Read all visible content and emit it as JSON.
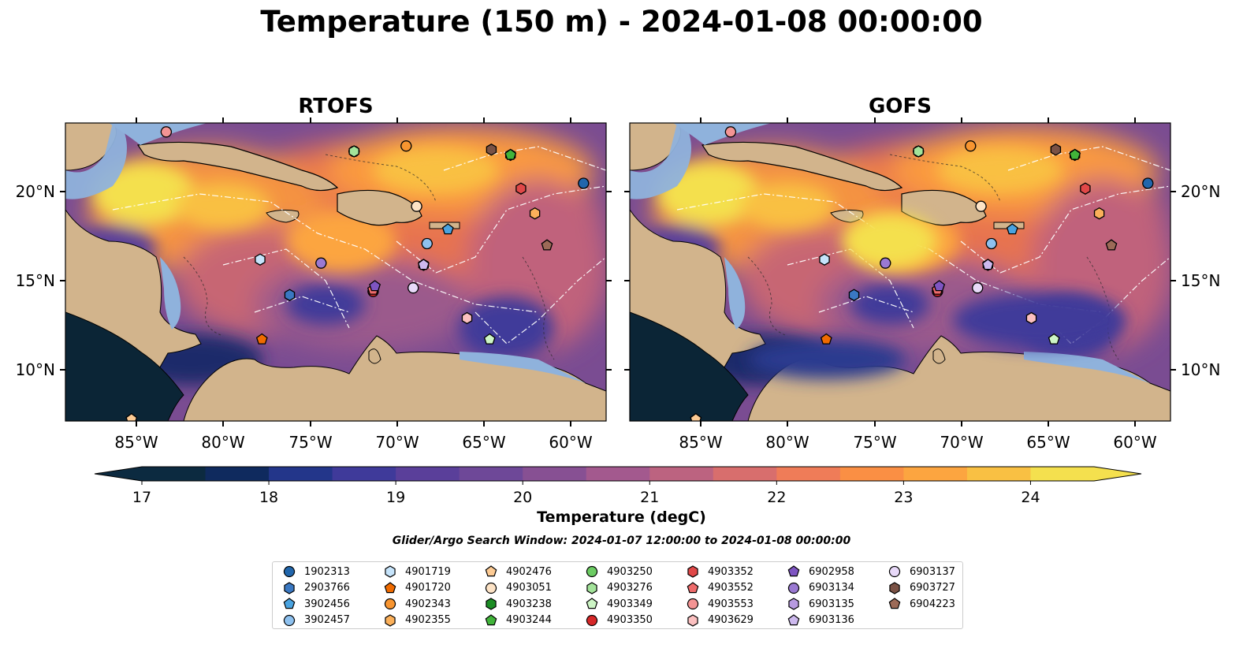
{
  "title": "Temperature (150 m) - 2024-01-08 00:00:00",
  "panels": [
    {
      "title": "RTOFS"
    },
    {
      "title": "GOFS"
    }
  ],
  "axes": {
    "lon_labels": [
      "85°W",
      "80°W",
      "75°W",
      "70°W",
      "65°W",
      "60°W"
    ],
    "lat_labels": [
      "20°N",
      "15°N",
      "10°N"
    ]
  },
  "colorbar": {
    "label": "Temperature (degC)",
    "ticks": [
      "17",
      "18",
      "19",
      "20",
      "21",
      "22",
      "23",
      "24"
    ],
    "min": 17,
    "max": 24.5,
    "step": 0.5,
    "colors": [
      "#0c2a40",
      "#0f2a5e",
      "#23368a",
      "#3f3a9a",
      "#5a3f9a",
      "#6e4898",
      "#875093",
      "#a3598e",
      "#bc6380",
      "#d86e6d",
      "#ef7c58",
      "#fa8f44",
      "#fca540",
      "#f9c043",
      "#f4e04e"
    ]
  },
  "search_window": "Glider/Argo Search Window: 2024-01-07 12:00:00 to 2024-01-08 00:00:00",
  "legend": [
    {
      "id": "1902313",
      "marker": "circle",
      "color": "#2166ac"
    },
    {
      "id": "2903766",
      "marker": "hexagon",
      "color": "#3a78c2"
    },
    {
      "id": "3902456",
      "marker": "pentagon",
      "color": "#4aa3e0"
    },
    {
      "id": "3902457",
      "marker": "circle",
      "color": "#8ec1ef"
    },
    {
      "id": "4901719",
      "marker": "hexagon",
      "color": "#c6e4fb"
    },
    {
      "id": "4901720",
      "marker": "pentagon",
      "color": "#f06b00"
    },
    {
      "id": "4902343",
      "marker": "circle",
      "color": "#f89530"
    },
    {
      "id": "4902355",
      "marker": "hexagon",
      "color": "#fbb05a"
    },
    {
      "id": "4902476",
      "marker": "pentagon",
      "color": "#fdcb94"
    },
    {
      "id": "4903051",
      "marker": "circle",
      "color": "#fde3c6"
    },
    {
      "id": "4903238",
      "marker": "hexagon",
      "color": "#1c8d24"
    },
    {
      "id": "4903244",
      "marker": "pentagon",
      "color": "#41b43a"
    },
    {
      "id": "4903250",
      "marker": "circle",
      "color": "#6ccc63"
    },
    {
      "id": "4903276",
      "marker": "hexagon",
      "color": "#a3e39a"
    },
    {
      "id": "4903349",
      "marker": "pentagon",
      "color": "#cdf5c5"
    },
    {
      "id": "4903350",
      "marker": "circle",
      "color": "#d62728"
    },
    {
      "id": "4903352",
      "marker": "hexagon",
      "color": "#e04848"
    },
    {
      "id": "4903552",
      "marker": "pentagon",
      "color": "#ee6b6b"
    },
    {
      "id": "4903553",
      "marker": "circle",
      "color": "#f49494"
    },
    {
      "id": "4903629",
      "marker": "hexagon",
      "color": "#fbc0c0"
    },
    {
      "id": "6902958",
      "marker": "pentagon",
      "color": "#7e55c2"
    },
    {
      "id": "6903134",
      "marker": "circle",
      "color": "#9a79d2"
    },
    {
      "id": "6903135",
      "marker": "hexagon",
      "color": "#b79ae0"
    },
    {
      "id": "6903136",
      "marker": "pentagon",
      "color": "#cdb9ee"
    },
    {
      "id": "6903137",
      "marker": "circle",
      "color": "#e8d9f9"
    },
    {
      "id": "6903727",
      "marker": "hexagon",
      "color": "#7a5245"
    },
    {
      "id": "6904223",
      "marker": "pentagon",
      "color": "#9c6a57"
    }
  ],
  "floats": [
    {
      "id": "1902313",
      "lon": -59.3,
      "lat": 20.5
    },
    {
      "id": "2903766",
      "lon": -76.2,
      "lat": 14.2
    },
    {
      "id": "3902456",
      "lon": -67.1,
      "lat": 17.9
    },
    {
      "id": "3902457",
      "lon": -68.3,
      "lat": 17.1
    },
    {
      "id": "4901719",
      "lon": -77.9,
      "lat": 16.2
    },
    {
      "id": "4901720",
      "lon": -77.8,
      "lat": 11.7
    },
    {
      "id": "4902343",
      "lon": -69.5,
      "lat": 22.6
    },
    {
      "id": "4902355",
      "lon": -62.1,
      "lat": 18.8
    },
    {
      "id": "4902476",
      "lon": -85.3,
      "lat": 7.2
    },
    {
      "id": "4903051",
      "lon": -68.9,
      "lat": 19.2
    },
    {
      "id": "4903238",
      "lon": -63.5,
      "lat": 22.1
    },
    {
      "id": "4903244",
      "lon": -63.5,
      "lat": 22.1
    },
    {
      "id": "4903250",
      "lon": -72.5,
      "lat": 22.3
    },
    {
      "id": "4903276",
      "lon": -72.5,
      "lat": 22.3
    },
    {
      "id": "4903349",
      "lon": -64.7,
      "lat": 11.7
    },
    {
      "id": "4903350",
      "lon": -71.4,
      "lat": 14.4
    },
    {
      "id": "4903352",
      "lon": -62.9,
      "lat": 20.2
    },
    {
      "id": "4903552",
      "lon": -71.4,
      "lat": 14.5
    },
    {
      "id": "4903553",
      "lon": -83.3,
      "lat": 23.4
    },
    {
      "id": "4903629",
      "lon": -66.0,
      "lat": 12.9
    },
    {
      "id": "6902958",
      "lon": -71.3,
      "lat": 14.7
    },
    {
      "id": "6903134",
      "lon": -74.4,
      "lat": 16.0
    },
    {
      "id": "6903135",
      "lon": -68.5,
      "lat": 15.9
    },
    {
      "id": "6903136",
      "lon": -68.5,
      "lat": 15.9
    },
    {
      "id": "6903137",
      "lon": -69.1,
      "lat": 14.6
    },
    {
      "id": "6903727",
      "lon": -64.6,
      "lat": 22.4
    },
    {
      "id": "6904223",
      "lon": -61.4,
      "lat": 17.0
    }
  ]
}
